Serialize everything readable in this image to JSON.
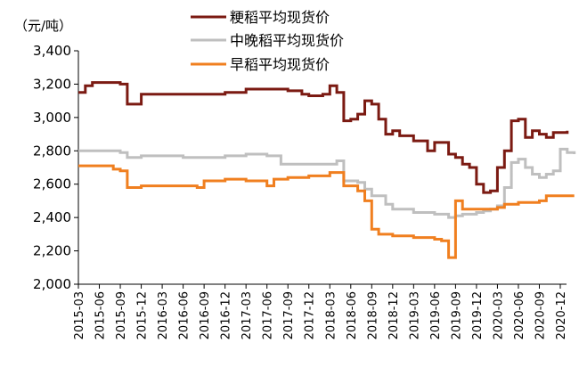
{
  "chart_data": {
    "type": "line",
    "unit_label": "（元/吨）",
    "title": "",
    "xlabel": "",
    "ylabel": "",
    "ylim": [
      2000,
      3400
    ],
    "yticks": [
      "2,000",
      "2,200",
      "2,400",
      "2,600",
      "2,800",
      "3,000",
      "3,200",
      "3,400"
    ],
    "ytick_values": [
      2000,
      2200,
      2400,
      2600,
      2800,
      3000,
      3200,
      3400
    ],
    "xlim": [
      "2015-03",
      "2021-02"
    ],
    "xticks": [
      "2015-03",
      "2015-06",
      "2015-09",
      "2015-12",
      "2016-03",
      "2016-06",
      "2016-09",
      "2016-12",
      "2017-03",
      "2017-06",
      "2017-09",
      "2017-12",
      "2018-03",
      "2018-06",
      "2018-09",
      "2018-12",
      "2019-03",
      "2019-06",
      "2019-09",
      "2019-12",
      "2020-03",
      "2020-06",
      "2020-09",
      "2020-12"
    ],
    "legend_position": "top",
    "series": [
      {
        "name": "粳稻平均现货价",
        "color": "#7b1a12",
        "points": [
          [
            "2015-03",
            3150
          ],
          [
            "2015-04",
            3190
          ],
          [
            "2015-05",
            3210
          ],
          [
            "2015-08",
            3210
          ],
          [
            "2015-09",
            3200
          ],
          [
            "2015-10",
            3080
          ],
          [
            "2015-11",
            3080
          ],
          [
            "2015-12",
            3140
          ],
          [
            "2016-03",
            3140
          ],
          [
            "2016-06",
            3140
          ],
          [
            "2016-09",
            3140
          ],
          [
            "2016-12",
            3150
          ],
          [
            "2017-03",
            3170
          ],
          [
            "2017-06",
            3170
          ],
          [
            "2017-09",
            3160
          ],
          [
            "2017-11",
            3140
          ],
          [
            "2017-12",
            3130
          ],
          [
            "2018-02",
            3140
          ],
          [
            "2018-03",
            3190
          ],
          [
            "2018-04",
            3150
          ],
          [
            "2018-05",
            2980
          ],
          [
            "2018-06",
            2990
          ],
          [
            "2018-07",
            3020
          ],
          [
            "2018-08",
            3100
          ],
          [
            "2018-09",
            3080
          ],
          [
            "2018-10",
            2990
          ],
          [
            "2018-11",
            2900
          ],
          [
            "2018-12",
            2920
          ],
          [
            "2019-01",
            2890
          ],
          [
            "2019-02",
            2890
          ],
          [
            "2019-03",
            2860
          ],
          [
            "2019-05",
            2800
          ],
          [
            "2019-06",
            2850
          ],
          [
            "2019-07",
            2850
          ],
          [
            "2019-08",
            2780
          ],
          [
            "2019-09",
            2760
          ],
          [
            "2019-10",
            2720
          ],
          [
            "2019-11",
            2700
          ],
          [
            "2019-12",
            2600
          ],
          [
            "2020-01",
            2550
          ],
          [
            "2020-02",
            2560
          ],
          [
            "2020-03",
            2700
          ],
          [
            "2020-04",
            2800
          ],
          [
            "2020-05",
            2980
          ],
          [
            "2020-06",
            2990
          ],
          [
            "2020-07",
            2880
          ],
          [
            "2020-08",
            2920
          ],
          [
            "2020-09",
            2900
          ],
          [
            "2020-10",
            2880
          ],
          [
            "2020-11",
            2910
          ],
          [
            "2020-12",
            2910
          ],
          [
            "2021-01",
            2920
          ]
        ]
      },
      {
        "name": "中晚稻平均现货价",
        "color": "#bfbfbf",
        "points": [
          [
            "2015-03",
            2800
          ],
          [
            "2015-06",
            2800
          ],
          [
            "2015-09",
            2790
          ],
          [
            "2015-10",
            2760
          ],
          [
            "2015-12",
            2770
          ],
          [
            "2016-03",
            2770
          ],
          [
            "2016-06",
            2760
          ],
          [
            "2016-09",
            2760
          ],
          [
            "2016-12",
            2770
          ],
          [
            "2017-03",
            2780
          ],
          [
            "2017-06",
            2770
          ],
          [
            "2017-08",
            2720
          ],
          [
            "2017-12",
            2720
          ],
          [
            "2018-03",
            2720
          ],
          [
            "2018-04",
            2740
          ],
          [
            "2018-05",
            2620
          ],
          [
            "2018-07",
            2610
          ],
          [
            "2018-08",
            2570
          ],
          [
            "2018-09",
            2530
          ],
          [
            "2018-11",
            2480
          ],
          [
            "2018-12",
            2450
          ],
          [
            "2019-03",
            2430
          ],
          [
            "2019-06",
            2420
          ],
          [
            "2019-08",
            2400
          ],
          [
            "2019-09",
            2410
          ],
          [
            "2019-10",
            2420
          ],
          [
            "2019-12",
            2430
          ],
          [
            "2020-01",
            2440
          ],
          [
            "2020-02",
            2450
          ],
          [
            "2020-03",
            2470
          ],
          [
            "2020-04",
            2580
          ],
          [
            "2020-05",
            2730
          ],
          [
            "2020-06",
            2750
          ],
          [
            "2020-07",
            2700
          ],
          [
            "2020-08",
            2660
          ],
          [
            "2020-09",
            2640
          ],
          [
            "2020-10",
            2660
          ],
          [
            "2020-11",
            2680
          ],
          [
            "2020-12",
            2810
          ],
          [
            "2021-01",
            2790
          ],
          [
            "2021-02",
            2780
          ]
        ]
      },
      {
        "name": "早稻平均现货价",
        "color": "#f07f1f",
        "points": [
          [
            "2015-03",
            2710
          ],
          [
            "2015-06",
            2710
          ],
          [
            "2015-08",
            2690
          ],
          [
            "2015-09",
            2680
          ],
          [
            "2015-10",
            2580
          ],
          [
            "2015-12",
            2590
          ],
          [
            "2016-03",
            2590
          ],
          [
            "2016-06",
            2590
          ],
          [
            "2016-08",
            2580
          ],
          [
            "2016-09",
            2620
          ],
          [
            "2016-12",
            2630
          ],
          [
            "2017-03",
            2620
          ],
          [
            "2017-06",
            2590
          ],
          [
            "2017-07",
            2630
          ],
          [
            "2017-09",
            2640
          ],
          [
            "2017-12",
            2650
          ],
          [
            "2018-03",
            2670
          ],
          [
            "2018-04",
            2670
          ],
          [
            "2018-05",
            2590
          ],
          [
            "2018-07",
            2560
          ],
          [
            "2018-08",
            2500
          ],
          [
            "2018-09",
            2330
          ],
          [
            "2018-10",
            2300
          ],
          [
            "2018-12",
            2290
          ],
          [
            "2019-03",
            2280
          ],
          [
            "2019-05",
            2280
          ],
          [
            "2019-06",
            2270
          ],
          [
            "2019-07",
            2260
          ],
          [
            "2019-08",
            2160
          ],
          [
            "2019-09",
            2500
          ],
          [
            "2019-10",
            2450
          ],
          [
            "2019-12",
            2450
          ],
          [
            "2020-03",
            2460
          ],
          [
            "2020-04",
            2480
          ],
          [
            "2020-06",
            2490
          ],
          [
            "2020-09",
            2500
          ],
          [
            "2020-10",
            2530
          ],
          [
            "2020-12",
            2530
          ],
          [
            "2021-02",
            2530
          ]
        ]
      }
    ]
  }
}
